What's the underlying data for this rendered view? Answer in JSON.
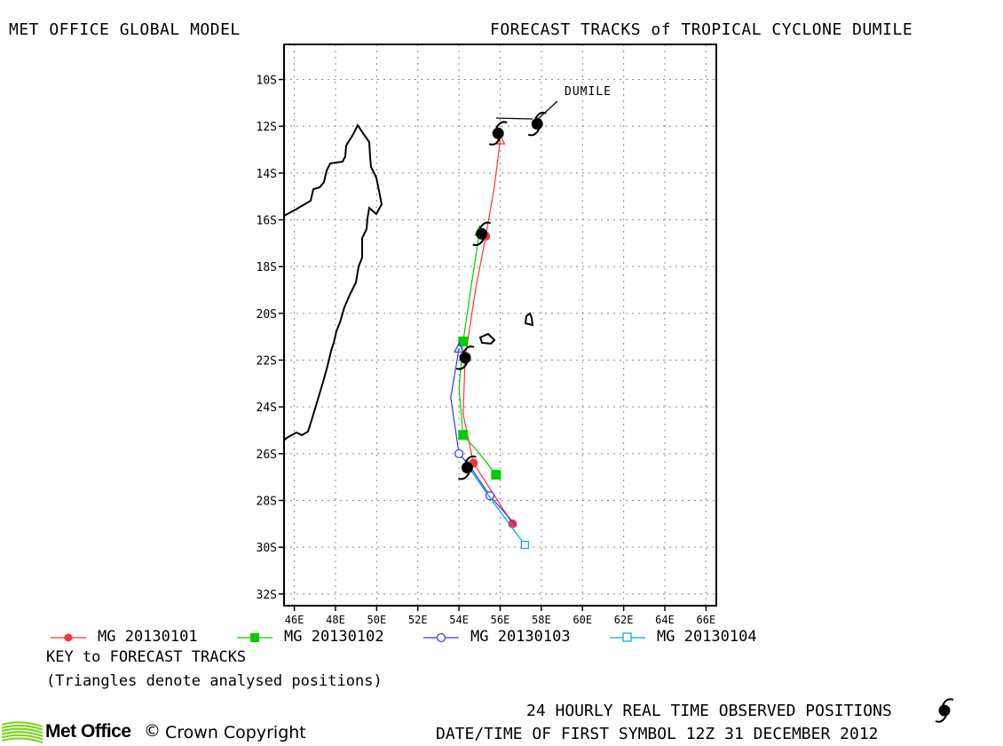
{
  "header": {
    "left": "MET OFFICE GLOBAL MODEL",
    "right": "FORECAST TRACKS of TROPICAL CYCLONE DUMILE"
  },
  "map": {
    "storm_label": "DUMILE",
    "lat_ticks": [
      "10S",
      "12S",
      "14S",
      "16S",
      "18S",
      "20S",
      "22S",
      "24S",
      "26S",
      "28S",
      "30S",
      "32S"
    ],
    "lon_ticks": [
      "46E",
      "48E",
      "50E",
      "52E",
      "54E",
      "56E",
      "58E",
      "60E",
      "62E",
      "64E",
      "66E"
    ],
    "lon_range": [
      45.5,
      66.5
    ],
    "lat_range": [
      -32.5,
      -8.5
    ],
    "grid": true
  },
  "observed_positions": [
    {
      "lon": 57.8,
      "lat": -11.9
    },
    {
      "lon": 55.9,
      "lat": -12.3
    },
    {
      "lon": 55.1,
      "lat": -16.6
    },
    {
      "lon": 54.3,
      "lat": -21.9
    },
    {
      "lon": 54.4,
      "lat": -26.6
    }
  ],
  "forecast_tracks": [
    {
      "name": "MG 20130101",
      "color": "#ff3333",
      "marker": "filled-circle",
      "points": [
        [
          56.0,
          -12.6
        ],
        [
          55.7,
          -14.7
        ],
        [
          55.3,
          -16.7
        ],
        [
          54.8,
          -19.0
        ],
        [
          54.3,
          -21.9
        ],
        [
          54.2,
          -24.3
        ],
        [
          54.7,
          -26.4
        ],
        [
          55.8,
          -27.9
        ],
        [
          56.6,
          -29.0
        ]
      ]
    },
    {
      "name": "MG 20130102",
      "color": "#00cc00",
      "marker": "filled-square",
      "points": [
        [
          55.0,
          -16.5
        ],
        [
          54.6,
          -18.8
        ],
        [
          54.2,
          -21.2
        ],
        [
          54.0,
          -23.2
        ],
        [
          54.2,
          -25.2
        ],
        [
          55.0,
          -26.0
        ],
        [
          55.8,
          -26.9
        ]
      ]
    },
    {
      "name": "MG 20130103",
      "color": "#3333ff",
      "marker": "open-circle",
      "points": [
        [
          54.0,
          -21.5
        ],
        [
          53.6,
          -23.6
        ],
        [
          54.0,
          -26.0
        ],
        [
          54.5,
          -26.5
        ],
        [
          55.5,
          -27.8
        ],
        [
          56.8,
          -29.1
        ]
      ]
    },
    {
      "name": "MG 20130104",
      "color": "#00aacc",
      "marker": "open-square",
      "points": [
        [
          54.4,
          -26.5
        ],
        [
          55.6,
          -28.0
        ],
        [
          57.2,
          -29.9
        ]
      ]
    }
  ],
  "key": {
    "title": "KEY to FORECAST TRACKS",
    "note": "(Triangles denote analysed positions)"
  },
  "footer": {
    "observed_label": "24 HOURLY REAL TIME OBSERVED POSITIONS",
    "first_symbol": "DATE/TIME OF FIRST SYMBOL 12Z 31 DECEMBER 2012",
    "brand": "Met Office",
    "copyright": "Crown Copyright",
    "copyright_symbol": "©"
  },
  "colors": {
    "track_1": "#ff3333",
    "track_2": "#00cc00",
    "track_3": "#3333ff",
    "track_4": "#00aacc",
    "logo": "#7ed321"
  }
}
